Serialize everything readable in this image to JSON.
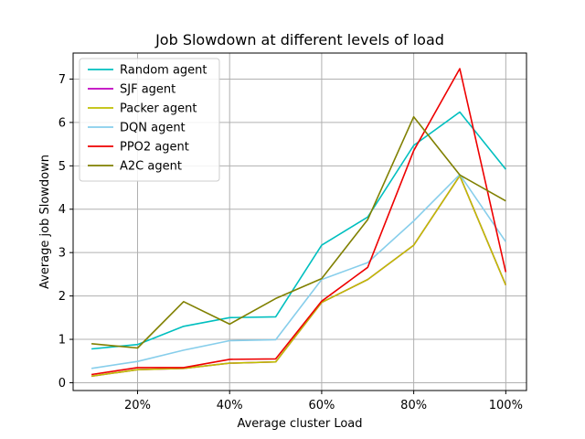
{
  "chart_data": {
    "type": "line",
    "title": "Job Slowdown at different levels of load",
    "xlabel": "Average cluster Load",
    "ylabel": "Average job Slowdown",
    "x": [
      0.1,
      0.2,
      0.3,
      0.4,
      0.5,
      0.6,
      0.7,
      0.8,
      0.9,
      1.0
    ],
    "xlim": [
      0.06,
      1.045
    ],
    "ylim": [
      -0.18,
      7.6
    ],
    "xticks": [
      0.2,
      0.4,
      0.6,
      0.8,
      1.0
    ],
    "xtick_labels": [
      "20%",
      "40%",
      "60%",
      "80%",
      "100%"
    ],
    "yticks": [
      0,
      1,
      2,
      3,
      4,
      5,
      6,
      7
    ],
    "ytick_labels": [
      "0",
      "1",
      "2",
      "3",
      "4",
      "5",
      "6",
      "7"
    ],
    "grid": true,
    "legend_position": "top-left",
    "series": [
      {
        "name": "Random agent",
        "color": "#00bfbf",
        "values": [
          0.78,
          0.88,
          1.3,
          1.5,
          1.52,
          3.17,
          3.82,
          5.47,
          6.24,
          4.92
        ]
      },
      {
        "name": "SJF agent",
        "color": "#bf00bf",
        "values": [
          0.15,
          0.3,
          0.33,
          0.45,
          0.48,
          1.85,
          2.38,
          3.17,
          4.77,
          2.25
        ]
      },
      {
        "name": "Packer agent",
        "color": "#bfbf00",
        "values": [
          0.15,
          0.3,
          0.33,
          0.45,
          0.48,
          1.85,
          2.38,
          3.17,
          4.77,
          2.25
        ]
      },
      {
        "name": "DQN agent",
        "color": "#87ceeb",
        "values": [
          0.33,
          0.49,
          0.75,
          0.97,
          0.99,
          2.38,
          2.77,
          3.73,
          4.8,
          3.25
        ]
      },
      {
        "name": "PPO2 agent",
        "color": "#ee0000",
        "values": [
          0.19,
          0.35,
          0.35,
          0.54,
          0.55,
          1.88,
          2.66,
          5.35,
          7.24,
          2.55
        ]
      },
      {
        "name": "A2C agent",
        "color": "#808000",
        "values": [
          0.9,
          0.8,
          1.87,
          1.35,
          1.94,
          2.4,
          3.76,
          6.13,
          4.79,
          4.19
        ]
      }
    ]
  }
}
